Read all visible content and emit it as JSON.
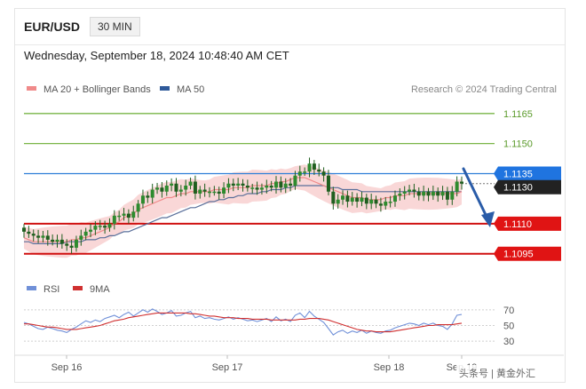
{
  "header": {
    "pair": "EUR/USD",
    "timeframe": "30 MIN"
  },
  "date": "Wednesday, September 18, 2024 10:48:40 AM CET",
  "legend": {
    "ma20_label": "MA 20 + Bollinger Bands",
    "ma50_label": "MA 50",
    "credit": "Research © 2024 Trading Central",
    "rsi_label": "RSI",
    "ma9_label": "9MA"
  },
  "colors": {
    "ma20": "#f08a8a",
    "band": "#f7c9c9",
    "ma50": "#5a6f9a",
    "target_line": "#7ab648",
    "support_line": "#d01010",
    "pivot_line": "#2f7fd8",
    "candle": "#2e8b2e",
    "arrow": "#2a5ca8",
    "rsi": "#7090d8",
    "rsi_ma": "#d03030"
  },
  "watermark": "头条号 | 黄金外汇",
  "chart_data": {
    "type": "candlestick",
    "ylim": [
      1.1086,
      1.1172
    ],
    "levels": [
      {
        "value": "1.1165",
        "kind": "target"
      },
      {
        "value": "1.1150",
        "kind": "target"
      },
      {
        "value": "1.1135",
        "kind": "pivot"
      },
      {
        "value": "1.1130",
        "kind": "last"
      },
      {
        "value": "1.1110",
        "kind": "support"
      },
      {
        "value": "1.1095",
        "kind": "support"
      }
    ],
    "x_ticks": [
      "Sep 16",
      "Sep 17",
      "Sep 18",
      "Sep 19"
    ],
    "close": [
      1.1106,
      1.1105,
      1.1104,
      1.1103,
      1.1104,
      1.1102,
      1.1101,
      1.1102,
      1.11,
      1.1099,
      1.1098,
      1.1102,
      1.1104,
      1.1106,
      1.1107,
      1.1109,
      1.1109,
      1.1108,
      1.111,
      1.1114,
      1.1114,
      1.1115,
      1.1113,
      1.1116,
      1.112,
      1.1124,
      1.1123,
      1.1127,
      1.1128,
      1.1126,
      1.1129,
      1.113,
      1.1126,
      1.1127,
      1.1129,
      1.1131,
      1.1125,
      1.1127,
      1.1126,
      1.1126,
      1.1126,
      1.1125,
      1.1128,
      1.113,
      1.1129,
      1.113,
      1.1129,
      1.1128,
      1.1128,
      1.1127,
      1.1128,
      1.1129,
      1.1128,
      1.1131,
      1.1128,
      1.113,
      1.1129,
      1.1134,
      1.1136,
      1.1136,
      1.114,
      1.1137,
      1.1136,
      1.1134,
      1.1126,
      1.112,
      1.1122,
      1.1124,
      1.1121,
      1.1123,
      1.1121,
      1.1123,
      1.112,
      1.1122,
      1.112,
      1.1119,
      1.1121,
      1.1121,
      1.1124,
      1.1125,
      1.1126,
      1.1127,
      1.1126,
      1.1124,
      1.1126,
      1.1124,
      1.1126,
      1.1124,
      1.1126,
      1.1122,
      1.1126,
      1.1131,
      1.113
    ],
    "ma20": [
      1.1103,
      1.1102,
      1.1101,
      1.1101,
      1.1101,
      1.1101,
      1.1101,
      1.1101,
      1.1101,
      1.1101,
      1.1102,
      1.1102,
      1.1103,
      1.1103,
      1.1104,
      1.1105,
      1.1106,
      1.1107,
      1.1108,
      1.111,
      1.1111,
      1.1113,
      1.1114,
      1.1115,
      1.1117,
      1.1118,
      1.1119,
      1.112,
      1.1121,
      1.1122,
      1.1123,
      1.1123,
      1.1124,
      1.1125,
      1.1125,
      1.1126,
      1.1126,
      1.1126,
      1.1126,
      1.1126,
      1.1127,
      1.1127,
      1.1127,
      1.1127,
      1.1128,
      1.1128,
      1.1128,
      1.1128,
      1.1129,
      1.1129,
      1.1129,
      1.1129,
      1.113,
      1.113,
      1.1131,
      1.1131,
      1.1132,
      1.1133,
      1.1133,
      1.1133,
      1.1132,
      1.1131,
      1.113,
      1.1129,
      1.1128,
      1.1127,
      1.1126,
      1.1125,
      1.1124,
      1.1123,
      1.1123,
      1.1123,
      1.1122,
      1.1122,
      1.1122,
      1.1122,
      1.1123,
      1.1123,
      1.1124,
      1.1124,
      1.1124,
      1.1125,
      1.1125,
      1.1125,
      1.1125,
      1.1125,
      1.1125,
      1.1125,
      1.1125,
      1.1125,
      1.1125,
      1.1125,
      1.1126
    ],
    "ma50": [
      1.1101,
      1.1101,
      1.11,
      1.11,
      1.11,
      1.11,
      1.11,
      1.11,
      1.11,
      1.1101,
      1.1101,
      1.1101,
      1.1101,
      1.1102,
      1.1102,
      1.1102,
      1.1103,
      1.1103,
      1.1104,
      1.1104,
      1.1105,
      1.1106,
      1.1106,
      1.1107,
      1.1108,
      1.1109,
      1.111,
      1.1111,
      1.1112,
      1.1113,
      1.1113,
      1.1114,
      1.1115,
      1.1116,
      1.1117,
      1.1118,
      1.1118,
      1.1119,
      1.112,
      1.1121,
      1.1121,
      1.1122,
      1.1122,
      1.1123,
      1.1123,
      1.1124,
      1.1124,
      1.1125,
      1.1125,
      1.1125,
      1.1126,
      1.1126,
      1.1127,
      1.1127,
      1.1127,
      1.1128,
      1.1128,
      1.1129,
      1.1129,
      1.1129,
      1.1129,
      1.1129,
      1.1129,
      1.1129,
      1.1128,
      1.1128,
      1.1128,
      1.1127,
      1.1127,
      1.1127,
      1.1127,
      1.1126,
      1.1126,
      1.1126,
      1.1126,
      1.1126,
      1.1126,
      1.1126,
      1.1126,
      1.1126,
      1.1126,
      1.1126,
      1.1126,
      1.1126,
      1.1126,
      1.1126,
      1.1126,
      1.1126,
      1.1126,
      1.1126,
      1.1126,
      1.1126,
      1.1126
    ],
    "rsi_panel": {
      "ylim": [
        20,
        80
      ],
      "ticks": [
        "70",
        "50",
        "30"
      ],
      "rsi": [
        54,
        52,
        49,
        46,
        45,
        48,
        46,
        44,
        43,
        41,
        45,
        48,
        52,
        56,
        54,
        57,
        55,
        59,
        61,
        63,
        60,
        64,
        67,
        62,
        66,
        70,
        67,
        71,
        68,
        64,
        66,
        69,
        62,
        63,
        66,
        68,
        60,
        62,
        59,
        60,
        58,
        57,
        59,
        61,
        58,
        60,
        58,
        56,
        57,
        55,
        57,
        59,
        55,
        61,
        56,
        58,
        55,
        63,
        66,
        60,
        68,
        62,
        58,
        54,
        46,
        38,
        42,
        44,
        40,
        43,
        41,
        44,
        40,
        43,
        41,
        40,
        43,
        44,
        47,
        49,
        51,
        53,
        52,
        50,
        53,
        51,
        53,
        50,
        49,
        45,
        52,
        63,
        64
      ],
      "ma9": [
        52,
        52,
        51,
        50,
        49,
        48,
        48,
        47,
        46,
        45,
        45,
        45,
        46,
        47,
        48,
        49,
        50,
        52,
        54,
        56,
        57,
        58,
        60,
        61,
        62,
        63,
        64,
        65,
        66,
        66,
        66,
        66,
        66,
        66,
        66,
        65,
        65,
        64,
        63,
        62,
        62,
        61,
        60,
        60,
        60,
        59,
        59,
        59,
        58,
        58,
        58,
        58,
        57,
        57,
        57,
        57,
        57,
        57,
        58,
        58,
        59,
        59,
        59,
        58,
        57,
        55,
        53,
        51,
        49,
        47,
        45,
        44,
        43,
        43,
        42,
        42,
        42,
        42,
        43,
        44,
        45,
        46,
        47,
        48,
        49,
        50,
        50,
        51,
        51,
        51,
        51,
        52,
        53
      ]
    }
  }
}
